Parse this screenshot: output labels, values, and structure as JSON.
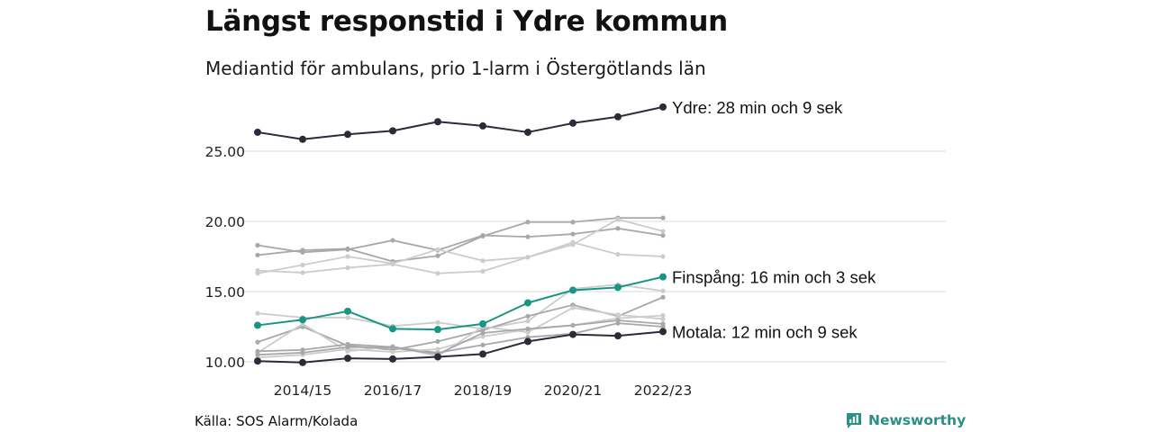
{
  "title": "Längst responstid i Ydre kommun",
  "subtitle": "Mediantid för ambulans, prio 1-larm i Östergötlands län",
  "source": "Källa: SOS Alarm/Kolada",
  "brand": "Newsworthy",
  "colors": {
    "highlight_dark": "#2b2b3a",
    "highlight_teal": "#1a9485",
    "other_dark": "#a8a8a8",
    "other_light": "#cccccc",
    "grid": "#e2e2e2",
    "brand": "#2a8f84"
  },
  "chart_data": {
    "type": "line",
    "title": "Längst responstid i Ydre kommun",
    "subtitle": "Mediantid för ambulans, prio 1-larm i Östergötlands län",
    "x": [
      "2013/14",
      "2014/15",
      "2015/16",
      "2016/17",
      "2017/18",
      "2018/19",
      "2019/20",
      "2020/21",
      "2021/22",
      "2022/23"
    ],
    "x_tick_labels": [
      "2014/15",
      "2016/17",
      "2018/19",
      "2020/21",
      "2022/23"
    ],
    "y_ticks": [
      10.0,
      15.0,
      20.0,
      25.0
    ],
    "y_tick_labels": [
      "10.00",
      "15.00",
      "20.00",
      "25.00"
    ],
    "ylim": [
      9.5,
      28.5
    ],
    "grid": "horizontal",
    "end_labels": [
      {
        "series": "Ydre",
        "text": "Ydre: 28 min och 9 sek"
      },
      {
        "series": "Finspång",
        "text": "Finspång: 16 min och 3 sek"
      },
      {
        "series": "Motala",
        "text": "Motala: 12 min och 9 sek"
      }
    ],
    "series": [
      {
        "name": "Ydre",
        "highlight": "dark",
        "values": [
          26.35,
          25.85,
          26.2,
          26.45,
          27.1,
          26.8,
          26.35,
          27.0,
          27.45,
          28.15
        ]
      },
      {
        "name": "Finspång",
        "highlight": "teal",
        "values": [
          12.6,
          13.0,
          13.6,
          12.35,
          12.3,
          12.7,
          14.2,
          15.1,
          15.3,
          16.05
        ]
      },
      {
        "name": "Motala",
        "highlight": "dark",
        "values": [
          10.05,
          9.95,
          10.25,
          10.2,
          10.35,
          10.55,
          11.45,
          11.95,
          11.85,
          12.15
        ]
      },
      {
        "values": [
          18.3,
          17.8,
          18.0,
          18.65,
          17.95,
          19.0,
          18.9,
          19.1,
          19.5,
          19.0
        ],
        "shade": "dark"
      },
      {
        "values": [
          17.6,
          17.95,
          18.05,
          17.15,
          17.55,
          18.95,
          19.95,
          19.95,
          20.25,
          20.25
        ],
        "shade": "dark"
      },
      {
        "values": [
          16.3,
          16.9,
          17.5,
          17.0,
          18.0,
          17.2,
          17.45,
          18.5,
          17.65,
          17.5
        ],
        "shade": "light"
      },
      {
        "values": [
          16.5,
          16.35,
          16.7,
          16.95,
          16.3,
          16.45,
          17.45,
          18.35,
          20.15,
          19.3
        ],
        "shade": "light"
      },
      {
        "values": [
          13.45,
          13.15,
          13.15,
          12.55,
          12.8,
          12.35,
          12.9,
          15.2,
          15.5,
          15.05
        ],
        "shade": "light"
      },
      {
        "values": [
          11.4,
          12.5,
          11.15,
          10.85,
          11.45,
          12.25,
          13.25,
          14.05,
          13.25,
          14.6
        ],
        "shade": "dark"
      },
      {
        "values": [
          10.65,
          12.7,
          10.75,
          11.1,
          10.4,
          12.5,
          12.1,
          13.85,
          13.35,
          13.05
        ],
        "shade": "light"
      },
      {
        "values": [
          10.75,
          10.85,
          11.25,
          11.05,
          10.65,
          11.2,
          11.75,
          12.0,
          12.75,
          12.5
        ],
        "shade": "dark"
      },
      {
        "values": [
          10.3,
          10.5,
          10.9,
          10.7,
          10.9,
          11.8,
          12.3,
          12.6,
          13.1,
          13.3
        ],
        "shade": "light"
      },
      {
        "values": [
          10.5,
          10.65,
          11.05,
          11.0,
          10.55,
          12.05,
          12.35,
          12.6,
          12.95,
          12.7
        ],
        "shade": "dark"
      }
    ]
  }
}
